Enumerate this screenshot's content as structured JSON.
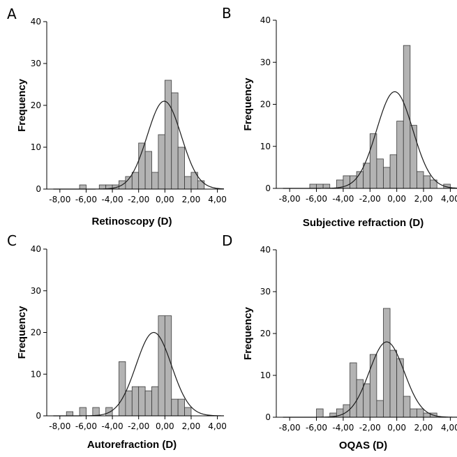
{
  "chart_data": [
    {
      "panel": "A",
      "type": "bar",
      "xlabel": "Retinoscopy (D)",
      "ylabel": "Frequency",
      "xlim": [
        -9,
        4.5
      ],
      "ylim": [
        0,
        40
      ],
      "x_ticks": [
        "-8,00",
        "-6,00",
        "-4,00",
        "-2,00",
        "0,00",
        "2,00",
        "4,00"
      ],
      "y_ticks": [
        "0",
        "10",
        "20",
        "30",
        "40"
      ],
      "bin_width": 0.5,
      "bins": [
        {
          "x": -6.25,
          "y": 1
        },
        {
          "x": -5.75,
          "y": 0
        },
        {
          "x": -5.25,
          "y": 0
        },
        {
          "x": -4.75,
          "y": 1
        },
        {
          "x": -4.25,
          "y": 1
        },
        {
          "x": -3.75,
          "y": 1
        },
        {
          "x": -3.25,
          "y": 2
        },
        {
          "x": -2.75,
          "y": 3
        },
        {
          "x": -2.25,
          "y": 4
        },
        {
          "x": -1.75,
          "y": 11
        },
        {
          "x": -1.25,
          "y": 9
        },
        {
          "x": -0.75,
          "y": 4
        },
        {
          "x": -0.25,
          "y": 13
        },
        {
          "x": 0.25,
          "y": 26
        },
        {
          "x": 0.75,
          "y": 23
        },
        {
          "x": 1.25,
          "y": 10
        },
        {
          "x": 1.75,
          "y": 3
        },
        {
          "x": 2.25,
          "y": 4
        },
        {
          "x": 2.75,
          "y": 2
        }
      ],
      "normal_curve": {
        "mean": -0.05,
        "sd": 1.3,
        "peak": 21
      }
    },
    {
      "panel": "B",
      "type": "bar",
      "xlabel": "Subjective refraction (D)",
      "ylabel": "Frequency",
      "xlim": [
        -9,
        4.5
      ],
      "ylim": [
        0,
        40
      ],
      "x_ticks": [
        "-8,00",
        "-6,00",
        "-4,00",
        "-2,00",
        "0,00",
        "2,00",
        "4,00"
      ],
      "y_ticks": [
        "0",
        "10",
        "20",
        "30",
        "40"
      ],
      "bin_width": 0.5,
      "bins": [
        {
          "x": -6.25,
          "y": 1
        },
        {
          "x": -5.75,
          "y": 1
        },
        {
          "x": -5.25,
          "y": 1
        },
        {
          "x": -4.75,
          "y": 0
        },
        {
          "x": -4.25,
          "y": 2
        },
        {
          "x": -3.75,
          "y": 3
        },
        {
          "x": -3.25,
          "y": 3
        },
        {
          "x": -2.75,
          "y": 4
        },
        {
          "x": -2.25,
          "y": 6
        },
        {
          "x": -1.75,
          "y": 13
        },
        {
          "x": -1.25,
          "y": 7
        },
        {
          "x": -0.75,
          "y": 5
        },
        {
          "x": -0.25,
          "y": 8
        },
        {
          "x": 0.25,
          "y": 16
        },
        {
          "x": 0.75,
          "y": 34
        },
        {
          "x": 1.25,
          "y": 15
        },
        {
          "x": 1.75,
          "y": 4
        },
        {
          "x": 2.25,
          "y": 3
        },
        {
          "x": 2.75,
          "y": 2
        },
        {
          "x": 3.25,
          "y": 0
        },
        {
          "x": 3.75,
          "y": 1
        }
      ],
      "normal_curve": {
        "mean": -0.15,
        "sd": 1.35,
        "peak": 23
      }
    },
    {
      "panel": "C",
      "type": "bar",
      "xlabel": "Autorefraction (D)",
      "ylabel": "Frequency",
      "xlim": [
        -9,
        4.5
      ],
      "ylim": [
        0,
        40
      ],
      "x_ticks": [
        "-8,00",
        "-6,00",
        "-4,00",
        "-2,00",
        "0,00",
        "2,00",
        "4,00"
      ],
      "y_ticks": [
        "0",
        "10",
        "20",
        "30",
        "40"
      ],
      "bin_width": 0.5,
      "bins": [
        {
          "x": -7.25,
          "y": 1
        },
        {
          "x": -6.75,
          "y": 0
        },
        {
          "x": -6.25,
          "y": 2
        },
        {
          "x": -5.75,
          "y": 0
        },
        {
          "x": -5.25,
          "y": 2
        },
        {
          "x": -4.75,
          "y": 0
        },
        {
          "x": -4.25,
          "y": 2
        },
        {
          "x": -3.75,
          "y": 0
        },
        {
          "x": -3.25,
          "y": 13
        },
        {
          "x": -2.75,
          "y": 6
        },
        {
          "x": -2.25,
          "y": 7
        },
        {
          "x": -1.75,
          "y": 7
        },
        {
          "x": -1.25,
          "y": 6
        },
        {
          "x": -0.75,
          "y": 7
        },
        {
          "x": -0.25,
          "y": 24
        },
        {
          "x": 0.25,
          "y": 24
        },
        {
          "x": 0.75,
          "y": 4
        },
        {
          "x": 1.25,
          "y": 4
        },
        {
          "x": 1.75,
          "y": 2
        }
      ],
      "normal_curve": {
        "mean": -0.85,
        "sd": 1.35,
        "peak": 20
      }
    },
    {
      "panel": "D",
      "type": "bar",
      "xlabel": "OQAS (D)",
      "ylabel": "Frequency",
      "xlim": [
        -9,
        4.5
      ],
      "ylim": [
        0,
        40
      ],
      "x_ticks": [
        "-8,00",
        "-6,00",
        "-4,00",
        "-2,00",
        "0,00",
        "2,00",
        "4,00"
      ],
      "y_ticks": [
        "0",
        "10",
        "20",
        "30",
        "40"
      ],
      "bin_width": 0.5,
      "bins": [
        {
          "x": -6.25,
          "y": 0
        },
        {
          "x": -5.75,
          "y": 2
        },
        {
          "x": -5.25,
          "y": 0
        },
        {
          "x": -4.75,
          "y": 1
        },
        {
          "x": -4.25,
          "y": 2
        },
        {
          "x": -3.75,
          "y": 3
        },
        {
          "x": -3.25,
          "y": 13
        },
        {
          "x": -2.75,
          "y": 9
        },
        {
          "x": -2.25,
          "y": 8
        },
        {
          "x": -1.75,
          "y": 15
        },
        {
          "x": -1.25,
          "y": 4
        },
        {
          "x": -0.75,
          "y": 26
        },
        {
          "x": -0.25,
          "y": 16
        },
        {
          "x": 0.25,
          "y": 14
        },
        {
          "x": 0.75,
          "y": 5
        },
        {
          "x": 1.25,
          "y": 2
        },
        {
          "x": 1.75,
          "y": 2
        },
        {
          "x": 2.25,
          "y": 1
        },
        {
          "x": 2.75,
          "y": 1
        }
      ],
      "normal_curve": {
        "mean": -0.75,
        "sd": 1.3,
        "peak": 18
      }
    }
  ]
}
